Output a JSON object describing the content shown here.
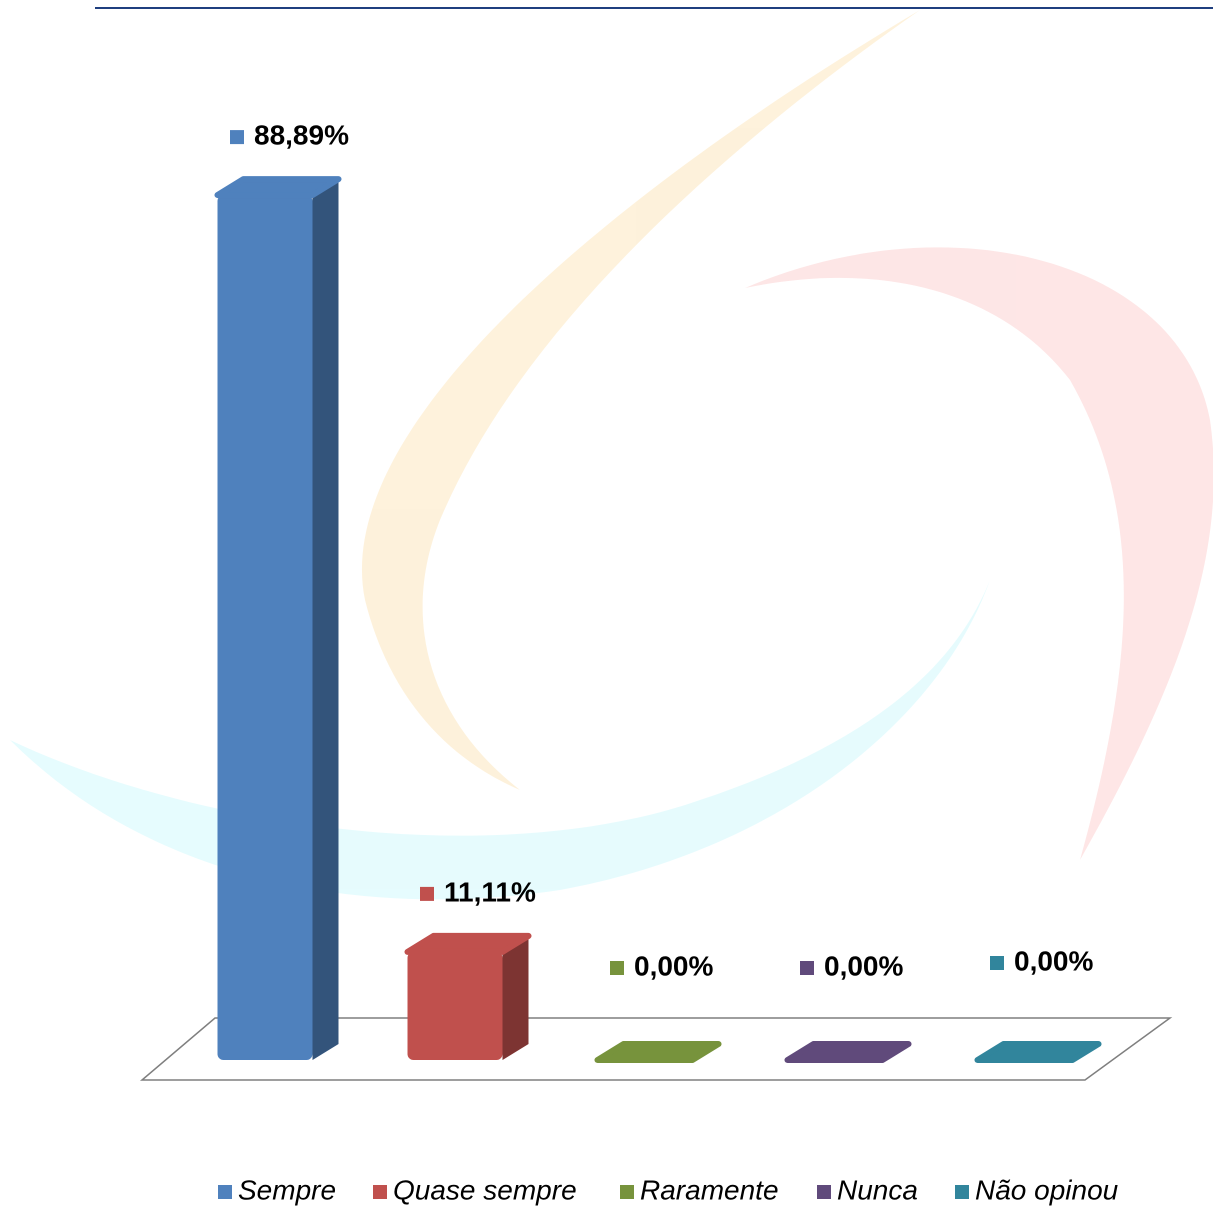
{
  "chart_data": {
    "type": "bar3d",
    "series": [
      {
        "name": "Sempre",
        "color": "#4f81bd",
        "values": [
          88.89
        ],
        "value_labels": [
          "88,89%"
        ]
      },
      {
        "name": "Quase sempre",
        "color": "#c0504d",
        "values": [
          11.11
        ],
        "value_labels": [
          "11,11%"
        ]
      },
      {
        "name": "Raramente",
        "color": "#77933c",
        "values": [
          0
        ],
        "value_labels": [
          "0,00%"
        ]
      },
      {
        "name": "Nunca",
        "color": "#604a7b",
        "values": [
          0
        ],
        "value_labels": [
          "0,00%"
        ]
      },
      {
        "name": "Não opinou",
        "color": "#31859c",
        "values": [
          0
        ],
        "value_labels": [
          "0,00%"
        ]
      }
    ],
    "ylim": [
      0,
      100
    ]
  }
}
